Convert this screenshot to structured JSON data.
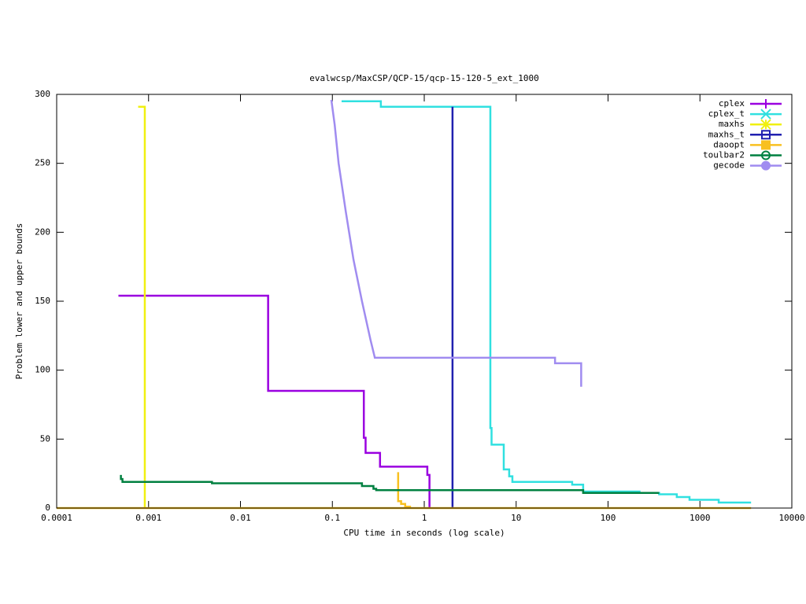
{
  "chart_data": {
    "type": "line",
    "title": "evalwcsp/MaxCSP/QCP-15/qcp-15-120-5_ext_1000",
    "x_label": "CPU time in seconds (log scale)",
    "y_label": "Problem lower and upper bounds",
    "x_scale": "log",
    "xlim": [
      0.0001,
      10000
    ],
    "xticks": [
      0.0001,
      0.001,
      0.01,
      0.1,
      1,
      10,
      100,
      1000,
      10000
    ],
    "ylim": [
      0,
      300
    ],
    "yticks": [
      0,
      50,
      100,
      150,
      200,
      250,
      300
    ],
    "legend": "top-right",
    "series": [
      {
        "name": "cplex",
        "color": "#9a00e0",
        "marker": "plus",
        "x": [
          0.00047,
          0.02,
          0.02,
          0.22,
          0.22,
          0.23,
          0.23,
          0.33,
          0.33,
          1.08,
          1.08,
          1.14,
          1.14
        ],
        "values": [
          154,
          154,
          85,
          85,
          51,
          51,
          40,
          40,
          30,
          30,
          24,
          24,
          0
        ]
      },
      {
        "name": "cplex_t",
        "color": "#30e0e0",
        "marker": "cross",
        "x": [
          0.126,
          0.337,
          0.337,
          5.24,
          5.24,
          5.4,
          5.4,
          7.33,
          7.33,
          8.4,
          8.4,
          9.1,
          9.1,
          40.7,
          40.7,
          53.6,
          53.6,
          220,
          220,
          360,
          360,
          560,
          560,
          770,
          770,
          1600,
          1600,
          3600
        ],
        "values": [
          295,
          295,
          291,
          291,
          58,
          58,
          46,
          46,
          28,
          28,
          23,
          23,
          19,
          19,
          17,
          17,
          12,
          12,
          11,
          11,
          10,
          10,
          8,
          8,
          6,
          6,
          4,
          4
        ]
      },
      {
        "name": "maxhs",
        "color": "#f0f010",
        "marker": "star",
        "x": [
          0.00077,
          0.00091,
          0.00091
        ],
        "values": [
          291,
          291,
          0
        ]
      },
      {
        "name": "maxhs_t",
        "color": "#2020b0",
        "marker": "square-open",
        "x": [
          2.03,
          2.03
        ],
        "values": [
          291,
          0
        ]
      },
      {
        "name": "daoopt",
        "color": "#f8c020",
        "marker": "square-filled",
        "x": [
          0.52,
          0.52,
          0.56,
          0.56,
          0.62,
          0.62,
          0.7,
          0.7,
          null,
          0.0001,
          3600
        ],
        "values": [
          26,
          5,
          5,
          3,
          3,
          1,
          1,
          0,
          null,
          0,
          0
        ]
      },
      {
        "name": "toulbar2",
        "color": "#008040",
        "marker": "circle-open",
        "x": [
          0.0005,
          0.0005,
          0.00052,
          0.00052,
          0.0049,
          0.0049,
          0.21,
          0.21,
          0.28,
          0.28,
          0.3,
          0.3,
          53.6,
          53.6,
          360
        ],
        "values": [
          24,
          21,
          21,
          19,
          19,
          18,
          18,
          16,
          16,
          14,
          14,
          13,
          13,
          11,
          11
        ]
      },
      {
        "name": "gecode",
        "color": "#a08cf0",
        "marker": "circle-filled",
        "x": [
          0.0975,
          0.106,
          0.117,
          0.14,
          0.17,
          0.21,
          0.26,
          0.29,
          26.5,
          26.5,
          51,
          51
        ],
        "values": [
          296,
          278,
          250,
          215,
          180,
          150,
          122,
          109,
          109,
          105,
          105,
          88
        ]
      }
    ]
  }
}
